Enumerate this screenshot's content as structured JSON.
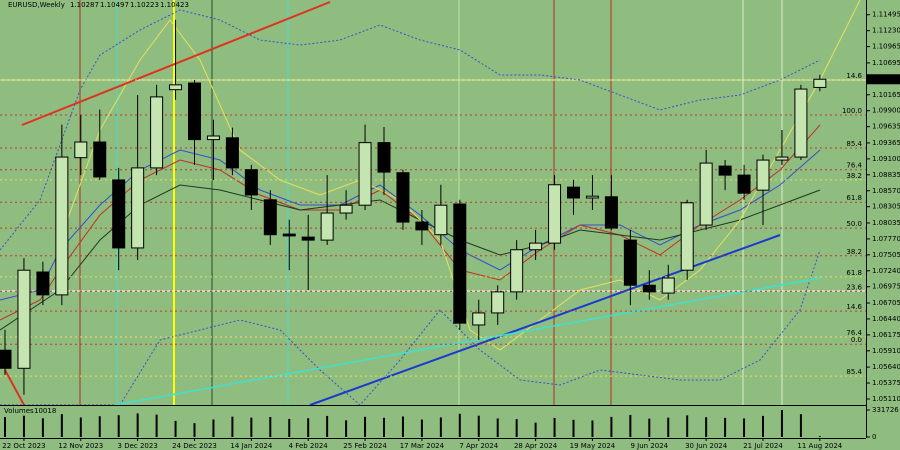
{
  "chart_data": {
    "type": "candlestick",
    "title": "EURUSD,Weekly",
    "categories": [
      null,
      "22 Oct 2023",
      null,
      null,
      "12 Nov 2023",
      null,
      null,
      "3 Dec 2023",
      null,
      null,
      "24 Dec 2023",
      null,
      null,
      "14 Jan 2024",
      null,
      null,
      "4 Feb 2024",
      null,
      null,
      "25 Feb 2024",
      null,
      null,
      "17 Mar 2024",
      null,
      null,
      "7 Apr 2024",
      null,
      null,
      "28 Apr 2024",
      null,
      null,
      "19 May 2024",
      null,
      null,
      "9 Jun 2024",
      null,
      null,
      "30 Jun 2024",
      null,
      null,
      "21 Jul 2024",
      null,
      null,
      "11 Aug 2024"
    ],
    "open": [
      1.0592,
      1.0562,
      1.0722,
      1.0684,
      1.0912,
      1.0938,
      1.0875,
      1.0762,
      1.0895,
      1.1025,
      1.1036,
      1.0942,
      1.0945,
      1.0892,
      1.0842,
      1.0785,
      1.078,
      1.0775,
      1.082,
      1.0833,
      1.0937,
      1.0887,
      1.0805,
      1.0784,
      1.0835,
      1.0634,
      1.0654,
      1.0689,
      1.0759,
      1.077,
      1.0863,
      1.0845,
      1.0847,
      1.0775,
      1.07,
      1.0687,
      1.0725,
      1.08,
      1.0898,
      1.0883,
      1.0858,
      1.0908,
      1.0913,
      1.10287
    ],
    "high": [
      1.0626,
      1.0745,
      1.0739,
      1.0967,
      1.0983,
      1.0992,
      1.0895,
      1.1016,
      1.1033,
      1.1141,
      1.1041,
      1.0975,
      1.0962,
      1.09,
      1.0858,
      1.0809,
      1.0817,
      1.0883,
      1.0858,
      1.0967,
      1.0963,
      1.0892,
      1.0825,
      1.0867,
      1.0842,
      1.0676,
      1.07,
      1.0775,
      1.0792,
      1.0883,
      1.0875,
      1.0883,
      1.0883,
      1.0792,
      1.0725,
      1.0734,
      1.0842,
      1.0925,
      1.0908,
      1.09,
      1.0917,
      1.0958,
      1.1033,
      1.10497
    ],
    "low": [
      1.0551,
      1.0518,
      1.0667,
      1.0667,
      1.0883,
      1.0875,
      1.0725,
      1.0742,
      1.0883,
      1.1008,
      1.09,
      1.0875,
      1.0883,
      1.0825,
      1.0767,
      1.0725,
      1.0692,
      1.0767,
      1.0809,
      1.0825,
      1.085,
      1.0792,
      1.0767,
      1.0767,
      1.0626,
      1.0609,
      1.0634,
      1.0676,
      1.0742,
      1.0759,
      1.0817,
      1.0825,
      1.0792,
      1.0667,
      1.0676,
      1.0676,
      1.0709,
      1.0792,
      1.0858,
      1.0842,
      1.08,
      1.09,
      1.0908,
      1.10223
    ],
    "close": [
      1.0562,
      1.0725,
      1.0684,
      1.0913,
      1.0938,
      1.088,
      1.0762,
      1.0895,
      1.1013,
      1.1033,
      1.0942,
      1.0948,
      1.0895,
      1.085,
      1.0784,
      1.0782,
      1.0775,
      1.082,
      1.0833,
      1.0937,
      1.0888,
      1.0805,
      1.0792,
      1.0833,
      1.0637,
      1.0654,
      1.0689,
      1.0759,
      1.077,
      1.0867,
      1.0845,
      1.0848,
      1.0795,
      1.07,
      1.0689,
      1.0712,
      1.0837,
      1.0903,
      1.0883,
      1.0853,
      1.0908,
      1.0913,
      1.1026,
      1.10423
    ],
    "up_color": "#c4e4b0",
    "down_color": "#000000",
    "ylim": [
      1.0501,
      1.1174
    ],
    "yticks": [
      1.11495,
      {
        "value": 1.1123,
        "label": "1.11230"
      },
      1.10965,
      1.10695,
      1.10165,
      {
        "value": 1.099,
        "label": "1.09900"
      },
      1.09635,
      1.09365,
      {
        "value": 1.091,
        "label": "1.09100"
      },
      1.08835,
      {
        "value": 1.0857,
        "label": "1.08570"
      },
      1.08305,
      1.08035,
      {
        "value": 1.0777,
        "label": "1.07770"
      },
      1.07505,
      {
        "value": 1.0724,
        "label": "1.07240"
      },
      1.06975,
      1.06705,
      {
        "value": 1.0644,
        "label": "1.06440"
      },
      1.06175,
      {
        "value": 1.0591,
        "label": "1.05910"
      },
      {
        "value": 1.0564,
        "label": "1.05640"
      },
      1.05375,
      {
        "value": 1.0511,
        "label": "1.05110"
      }
    ],
    "fib_levels": [
      {
        "value": 1.0983,
        "label": "100.0",
        "color": "#c0392b"
      },
      {
        "value": 1.0928,
        "label": "85.4",
        "color": "#c0392b"
      },
      {
        "value": 1.0892,
        "label": "76.4",
        "color": "#c0392b"
      },
      {
        "value": 1.0838,
        "label": "61.8",
        "color": "#c0392b"
      },
      {
        "value": 1.0795,
        "label": "50.0",
        "color": "#c0392b"
      },
      {
        "value": 1.0749,
        "label": "38.2",
        "color": "#c0392b"
      },
      {
        "value": 1.069,
        "label": "23.6",
        "color": "#c0392b"
      },
      {
        "value": 1.0657,
        "label": "14.6",
        "color": "#c0392b"
      },
      {
        "value": 1.0602,
        "label": "0.0",
        "color": "#c0392b"
      },
      {
        "value": 1.1041,
        "label": "14.6",
        "color": "#e8e05a"
      },
      {
        "value": 1.0875,
        "label": "38.2",
        "color": "#e8e05a"
      },
      {
        "value": 1.0714,
        "label": "61.8",
        "color": "#e8e05a"
      },
      {
        "value": 1.0614,
        "label": "76.4",
        "color": "#e8e05a"
      },
      {
        "value": 1.0549,
        "label": "85.4",
        "color": "#e8e05a"
      }
    ],
    "volume": {
      "label": "Volumes",
      "values": [
        245000,
        262000,
        230000,
        281000,
        240000,
        255000,
        268000,
        290000,
        275000,
        198000,
        170000,
        215000,
        250000,
        238000,
        246000,
        222000,
        231000,
        259000,
        205000,
        248000,
        236000,
        252000,
        214000,
        241000,
        285000,
        262000,
        228000,
        219000,
        176000,
        234000,
        211000,
        203000,
        247000,
        271000,
        226000,
        238000,
        266000,
        243000,
        235000,
        228000,
        259000,
        331726,
        280000,
        10018
      ],
      "ylim": [
        0,
        331726
      ],
      "yticks": [
        0,
        331726
      ],
      "color": "#000000"
    }
  }
}
